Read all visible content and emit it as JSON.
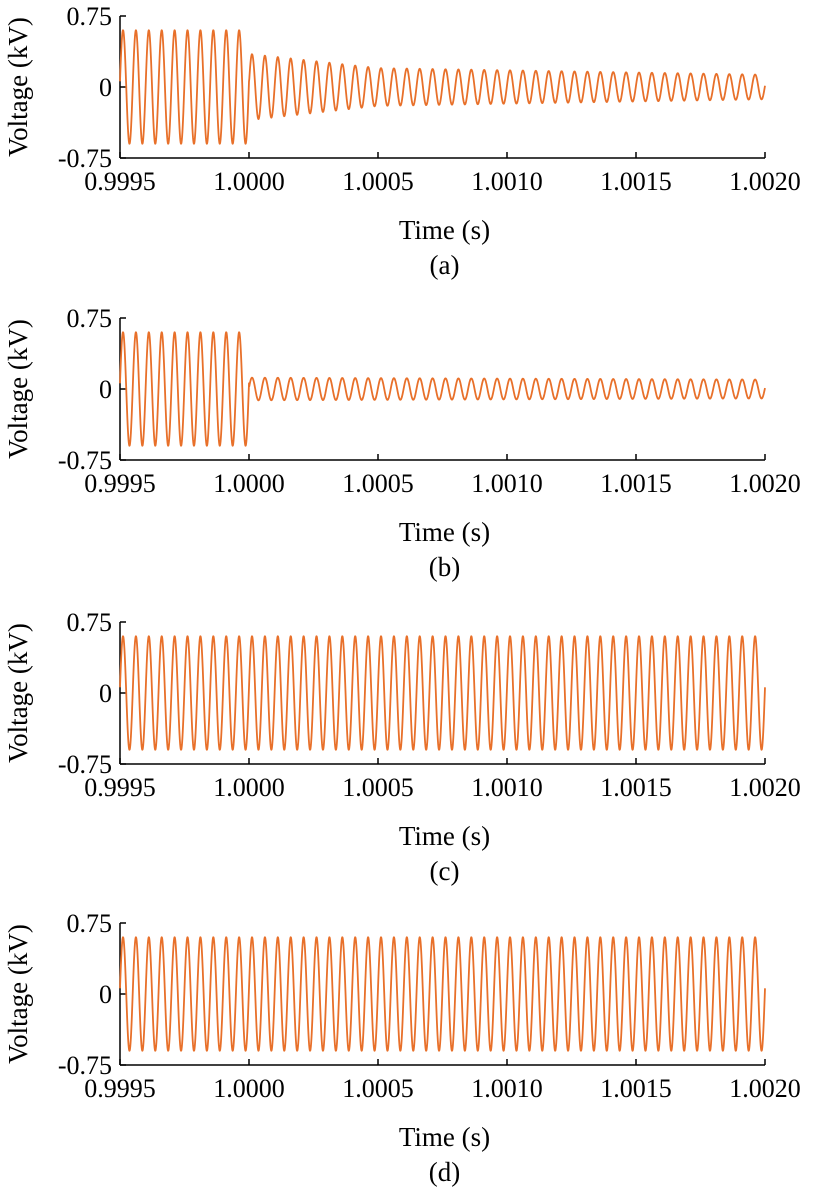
{
  "figure": {
    "trace_color": "#E8702A",
    "axis_color": "#000000"
  },
  "chart_data": [
    {
      "type": "line",
      "panel_label": "(a)",
      "xlabel": "Time (s)",
      "ylabel": "Voltage (kV)",
      "xlim": [
        0.9995,
        1.002
      ],
      "ylim": [
        -0.75,
        0.75
      ],
      "x_ticks": [
        "0.9995",
        "1.0000",
        "1.0005",
        "1.0010",
        "1.0015",
        "1.0020"
      ],
      "y_ticks": [
        "0.75",
        "0",
        "-0.75"
      ],
      "signal": {
        "frequency_hz": 20000,
        "segments": [
          {
            "t_start": 0.9995,
            "t_end": 1.0,
            "amplitude_start": 0.6,
            "amplitude_end": 0.6
          },
          {
            "t_start": 1.0,
            "t_end": 1.0005,
            "amplitude_start": 0.35,
            "amplitude_end": 0.2
          },
          {
            "t_start": 1.0005,
            "t_end": 1.002,
            "amplitude_start": 0.2,
            "amplitude_end": 0.13
          }
        ]
      }
    },
    {
      "type": "line",
      "panel_label": "(b)",
      "xlabel": "Time (s)",
      "ylabel": "Voltage (kV)",
      "xlim": [
        0.9995,
        1.002
      ],
      "ylim": [
        -0.75,
        0.75
      ],
      "x_ticks": [
        "0.9995",
        "1.0000",
        "1.0005",
        "1.0010",
        "1.0015",
        "1.0020"
      ],
      "y_ticks": [
        "0.75",
        "0",
        "-0.75"
      ],
      "signal": {
        "frequency_hz": 20000,
        "segments": [
          {
            "t_start": 0.9995,
            "t_end": 1.0,
            "amplitude_start": 0.6,
            "amplitude_end": 0.6
          },
          {
            "t_start": 1.0,
            "t_end": 1.002,
            "amplitude_start": 0.12,
            "amplitude_end": 0.1
          }
        ]
      }
    },
    {
      "type": "line",
      "panel_label": "(c)",
      "xlabel": "Time (s)",
      "ylabel": "Voltage (kV)",
      "xlim": [
        0.9995,
        1.002
      ],
      "ylim": [
        -0.75,
        0.75
      ],
      "x_ticks": [
        "0.9995",
        "1.0000",
        "1.0005",
        "1.0010",
        "1.0015",
        "1.0020"
      ],
      "y_ticks": [
        "0.75",
        "0",
        "-0.75"
      ],
      "signal": {
        "frequency_hz": 20000,
        "segments": [
          {
            "t_start": 0.9995,
            "t_end": 1.002,
            "amplitude_start": 0.6,
            "amplitude_end": 0.6
          }
        ]
      }
    },
    {
      "type": "line",
      "panel_label": "(d)",
      "xlabel": "Time (s)",
      "ylabel": "Voltage (kV)",
      "xlim": [
        0.9995,
        1.002
      ],
      "ylim": [
        -0.75,
        0.75
      ],
      "x_ticks": [
        "0.9995",
        "1.0000",
        "1.0005",
        "1.0010",
        "1.0015",
        "1.0020"
      ],
      "y_ticks": [
        "0.75",
        "0",
        "-0.75"
      ],
      "signal": {
        "frequency_hz": 20000,
        "segments": [
          {
            "t_start": 0.9995,
            "t_end": 1.002,
            "amplitude_start": 0.6,
            "amplitude_end": 0.6
          }
        ]
      }
    }
  ]
}
